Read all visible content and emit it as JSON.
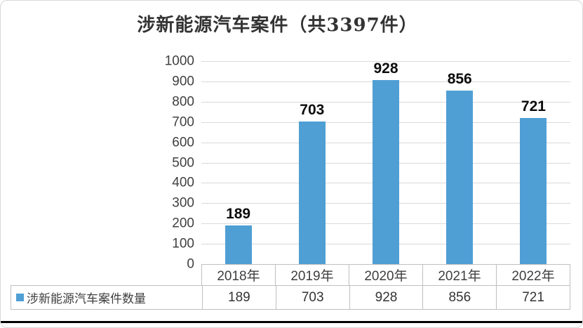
{
  "chart_data": {
    "type": "bar",
    "title": "涉新能源汽车案件（共3397件）",
    "categories": [
      "2018年",
      "2019年",
      "2020年",
      "2021年",
      "2022年"
    ],
    "series": [
      {
        "name": "涉新能源汽车案件数量",
        "values": [
          189,
          703,
          928,
          856,
          721
        ]
      }
    ],
    "ylim": [
      0,
      1000
    ],
    "ytick_step": 100,
    "grid": true,
    "legend_position": "bottom-left-table",
    "bar_color": "#4f9fd4",
    "gridline_color": "#d9d9d9",
    "table_border_color": "#bfbfbf"
  }
}
